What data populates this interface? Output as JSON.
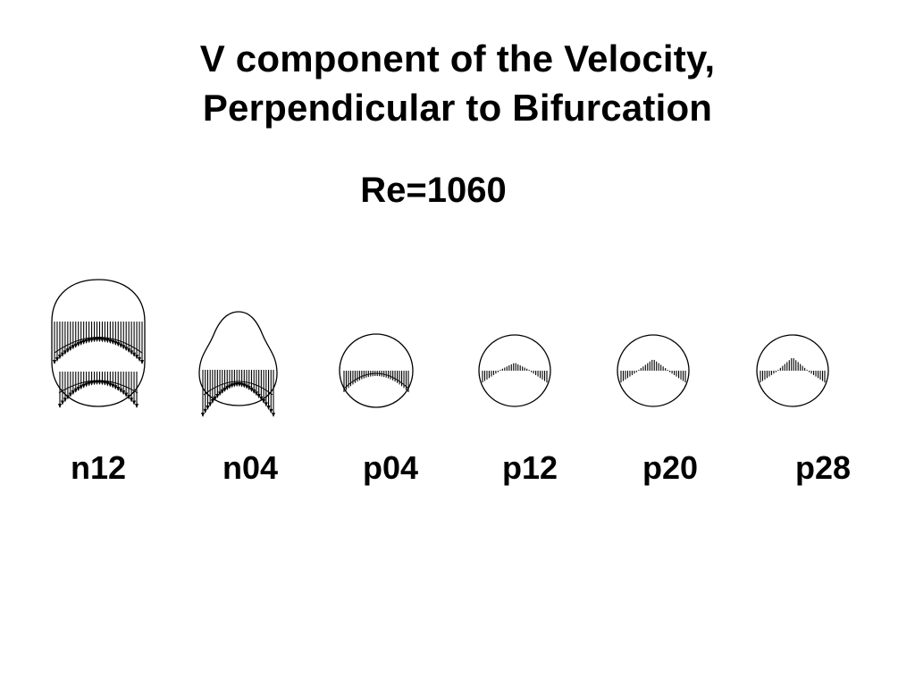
{
  "title": {
    "line1": "V component of the Velocity,",
    "line2": "Perpendicular to Bifurcation"
  },
  "subtitle": "Re=1060",
  "slices": [
    {
      "label": "n12",
      "shape": "tall-oval"
    },
    {
      "label": "n04",
      "shape": "pear"
    },
    {
      "label": "p04",
      "shape": "circle"
    },
    {
      "label": "p12",
      "shape": "circle"
    },
    {
      "label": "p20",
      "shape": "circle"
    },
    {
      "label": "p28",
      "shape": "circle"
    }
  ],
  "colors": {
    "ink": "#000000",
    "background": "#ffffff"
  }
}
